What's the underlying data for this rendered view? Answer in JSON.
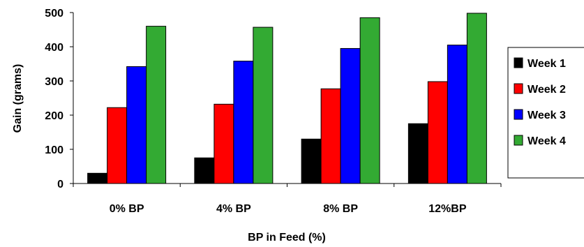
{
  "chart_data": {
    "type": "bar",
    "title": "",
    "xlabel": "BP in Feed (%)",
    "ylabel": "Gain (grams)",
    "ylim": [
      0,
      500
    ],
    "yticks": [
      "0",
      "100",
      "200",
      "300",
      "400",
      "500"
    ],
    "grid": false,
    "legend_position": "right",
    "categories": [
      "0% BP",
      "4% BP",
      "8% BP",
      "12%BP"
    ],
    "series": [
      {
        "name": "Week 1",
        "color": "#000000",
        "values": [
          30,
          75,
          130,
          175
        ]
      },
      {
        "name": "Week 2",
        "color": "#ff0000",
        "values": [
          222,
          232,
          277,
          298
        ]
      },
      {
        "name": "Week 3",
        "color": "#0000ff",
        "values": [
          342,
          358,
          395,
          405
        ]
      },
      {
        "name": "Week 4",
        "color": "#33aa33",
        "values": [
          460,
          457,
          485,
          498
        ]
      }
    ]
  }
}
